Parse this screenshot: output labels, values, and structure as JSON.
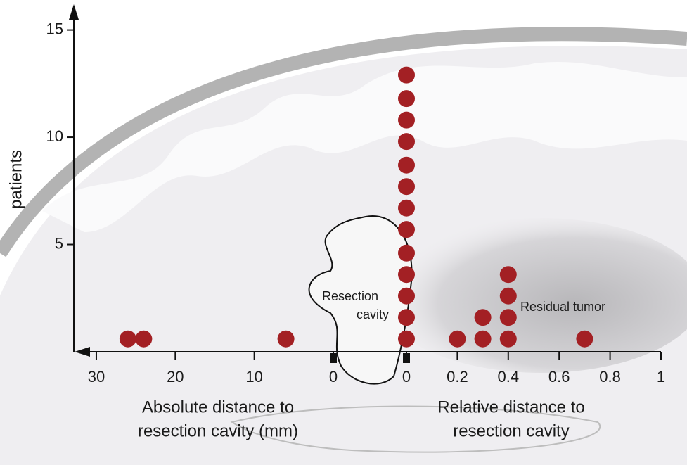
{
  "chart_data": {
    "type": "scatter",
    "ylabel": "patients",
    "ylim": [
      0,
      16.2
    ],
    "yticks": [
      5,
      10,
      15
    ],
    "x_axes": [
      {
        "label": [
          "Absolute distance to",
          "resection cavity (mm)"
        ],
        "xlim": [
          32.4,
          0
        ],
        "xticks": [
          30,
          20,
          10,
          0
        ]
      },
      {
        "label": [
          "Relative distance to",
          "resection cavity"
        ],
        "xlim": [
          0,
          1
        ],
        "xticks": [
          0,
          0.2,
          0.4,
          0.6,
          0.8,
          1
        ]
      }
    ],
    "series": [
      {
        "color": "#a32024",
        "xaxis": 0,
        "x": [
          26,
          24,
          6
        ],
        "values": [
          0.6,
          0.6,
          0.6
        ]
      },
      {
        "color": "#a32024",
        "xaxis": 1,
        "x": [
          0,
          0,
          0,
          0,
          0,
          0,
          0,
          0,
          0,
          0,
          0,
          0,
          0,
          0.2,
          0.3,
          0.3,
          0.4,
          0.4,
          0.4,
          0.4,
          0.7
        ],
        "values": [
          0.6,
          1.6,
          2.6,
          3.6,
          4.6,
          5.7,
          6.7,
          7.7,
          8.7,
          9.8,
          10.8,
          11.8,
          12.9,
          0.6,
          0.6,
          1.6,
          0.6,
          1.6,
          2.6,
          3.6,
          0.6
        ]
      }
    ],
    "annotations": [
      [
        "Resection",
        "cavity"
      ],
      [
        "Residual tumor"
      ]
    ]
  }
}
